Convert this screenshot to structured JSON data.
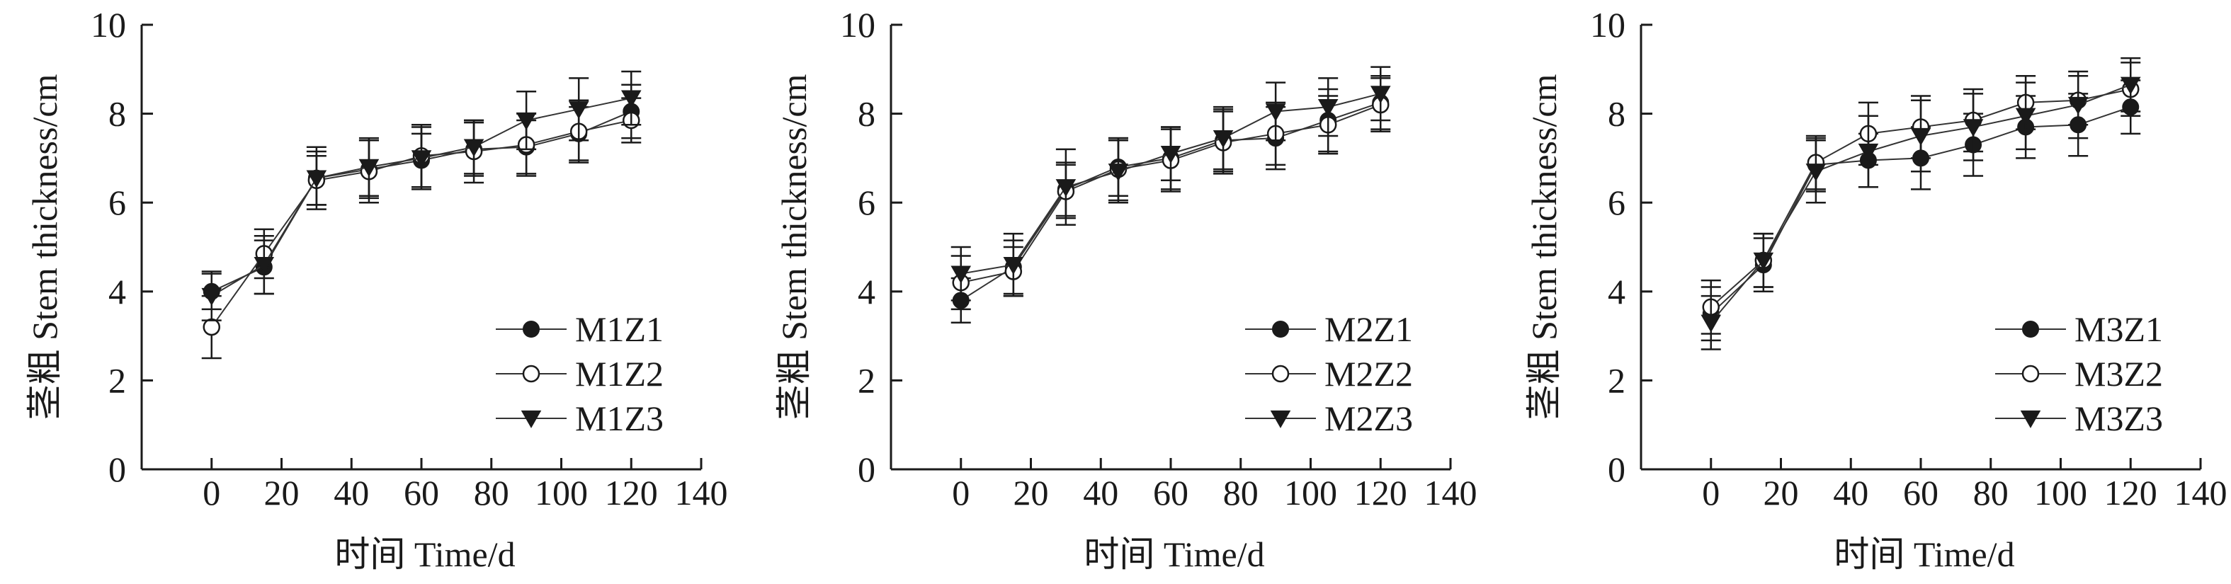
{
  "chart_data": [
    {
      "type": "line",
      "xlabel": "时间 Time/d",
      "ylabel": "茎粗 Stem thickness/cm",
      "xlim": [
        -20,
        140
      ],
      "ylim": [
        0,
        10
      ],
      "xticks": [
        "0",
        "20",
        "40",
        "60",
        "80",
        "100",
        "120",
        "140"
      ],
      "yticks": [
        "0",
        "2",
        "4",
        "6",
        "8",
        "10"
      ],
      "legend_position": "bottom-right",
      "x": [
        0,
        15,
        30,
        45,
        60,
        75,
        90,
        105,
        120
      ],
      "series": [
        {
          "name": "M1Z1",
          "marker": "filled-circle",
          "values": [
            4.0,
            4.55,
            6.55,
            6.75,
            6.95,
            7.2,
            7.25,
            7.55,
            8.05
          ],
          "errors": [
            0.4,
            0.6,
            0.6,
            0.65,
            0.6,
            0.6,
            0.6,
            0.6,
            0.6
          ]
        },
        {
          "name": "M1Z2",
          "marker": "open-circle",
          "values": [
            3.2,
            4.85,
            6.5,
            6.7,
            7.05,
            7.15,
            7.3,
            7.6,
            7.85
          ],
          "errors": [
            0.7,
            0.55,
            0.55,
            0.7,
            0.7,
            0.7,
            0.7,
            0.7,
            0.5
          ]
        },
        {
          "name": "M1Z3",
          "marker": "filled-triangle-down",
          "values": [
            3.9,
            4.6,
            6.55,
            6.8,
            7.0,
            7.25,
            7.85,
            8.1,
            8.35
          ],
          "errors": [
            0.55,
            0.65,
            0.7,
            0.65,
            0.7,
            0.6,
            0.65,
            0.7,
            0.6
          ]
        }
      ]
    },
    {
      "type": "line",
      "xlabel": "时间 Time/d",
      "ylabel": "茎粗 Stem thickness/cm",
      "xlim": [
        -20,
        140
      ],
      "ylim": [
        0,
        10
      ],
      "xticks": [
        "0",
        "20",
        "40",
        "60",
        "80",
        "100",
        "120",
        "140"
      ],
      "yticks": [
        "0",
        "2",
        "4",
        "6",
        "8",
        "10"
      ],
      "legend_position": "bottom-right",
      "x": [
        0,
        15,
        30,
        45,
        60,
        75,
        90,
        105,
        120
      ],
      "series": [
        {
          "name": "M2Z1",
          "marker": "filled-circle",
          "values": [
            3.8,
            4.55,
            6.3,
            6.8,
            7.0,
            7.4,
            7.45,
            7.85,
            8.25
          ],
          "errors": [
            0.5,
            0.6,
            0.6,
            0.65,
            0.7,
            0.7,
            0.7,
            0.7,
            0.6
          ]
        },
        {
          "name": "M2Z2",
          "marker": "open-circle",
          "values": [
            4.2,
            4.45,
            6.25,
            6.75,
            6.95,
            7.35,
            7.55,
            7.75,
            8.2
          ],
          "errors": [
            0.6,
            0.55,
            0.6,
            0.7,
            0.7,
            0.7,
            0.7,
            0.65,
            0.6
          ]
        },
        {
          "name": "M2Z3",
          "marker": "filled-triangle-down",
          "values": [
            4.4,
            4.6,
            6.35,
            6.7,
            7.1,
            7.45,
            8.05,
            8.15,
            8.45
          ],
          "errors": [
            0.6,
            0.7,
            0.85,
            0.7,
            0.6,
            0.7,
            0.65,
            0.65,
            0.6
          ]
        }
      ]
    },
    {
      "type": "line",
      "xlabel": "时间 Time/d",
      "ylabel": "茎粗 Stem thickness/cm",
      "xlim": [
        -20,
        140
      ],
      "ylim": [
        0,
        10
      ],
      "xticks": [
        "0",
        "20",
        "40",
        "60",
        "80",
        "100",
        "120",
        "140"
      ],
      "yticks": [
        "0",
        "2",
        "4",
        "6",
        "8",
        "10"
      ],
      "legend_position": "bottom-right",
      "x": [
        0,
        15,
        30,
        45,
        60,
        75,
        90,
        105,
        120
      ],
      "series": [
        {
          "name": "M3Z1",
          "marker": "filled-circle",
          "values": [
            3.5,
            4.6,
            6.85,
            6.95,
            7.0,
            7.3,
            7.7,
            7.75,
            8.15
          ],
          "errors": [
            0.6,
            0.6,
            0.6,
            0.6,
            0.7,
            0.7,
            0.7,
            0.7,
            0.6
          ]
        },
        {
          "name": "M3Z2",
          "marker": "open-circle",
          "values": [
            3.65,
            4.7,
            6.9,
            7.55,
            7.7,
            7.85,
            8.25,
            8.3,
            8.55
          ],
          "errors": [
            0.6,
            0.6,
            0.6,
            0.7,
            0.7,
            0.7,
            0.6,
            0.55,
            0.6
          ]
        },
        {
          "name": "M3Z3",
          "marker": "filled-triangle-down",
          "values": [
            3.3,
            4.7,
            6.7,
            7.15,
            7.5,
            7.7,
            7.95,
            8.2,
            8.65
          ],
          "errors": [
            0.6,
            0.6,
            0.7,
            0.8,
            0.8,
            0.75,
            0.75,
            0.75,
            0.6
          ]
        }
      ]
    }
  ],
  "colors": {
    "ink": "#1a1a1a",
    "background": "#ffffff"
  }
}
